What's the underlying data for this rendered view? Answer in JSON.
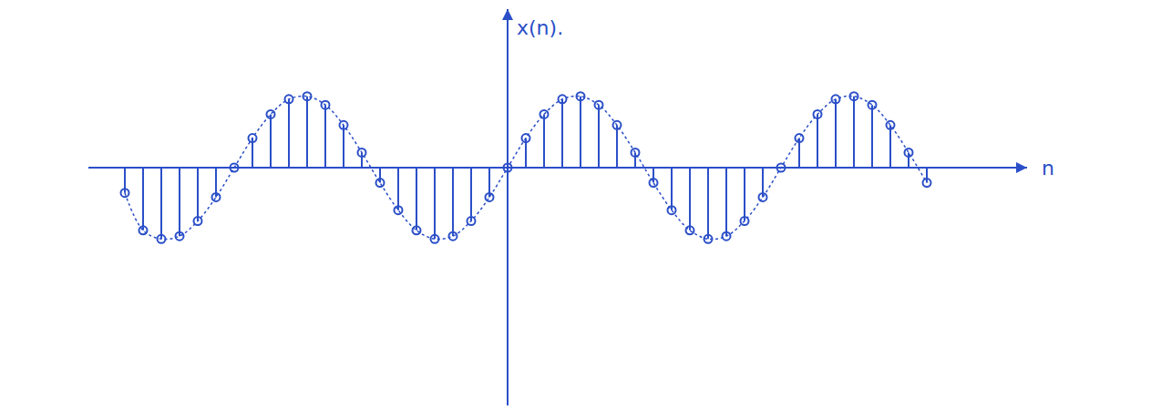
{
  "chart_data": {
    "type": "stem",
    "x_label": "n",
    "y_label": "x(n).",
    "x": [
      -21,
      -20,
      -19,
      -18,
      -17,
      -16,
      -15,
      -14,
      -13,
      -12,
      -11,
      -10,
      -9,
      -8,
      -7,
      -6,
      -5,
      -4,
      -3,
      -2,
      -1,
      0,
      1,
      2,
      3,
      4,
      5,
      6,
      7,
      8,
      9,
      10,
      11,
      12,
      13,
      14,
      15,
      16,
      17,
      18,
      19,
      20,
      21,
      22,
      23
    ],
    "values": [
      -0.35,
      -0.87,
      -0.99,
      -0.95,
      -0.74,
      -0.41,
      0,
      0.41,
      0.74,
      0.95,
      0.99,
      0.87,
      0.59,
      0.21,
      -0.21,
      -0.59,
      -0.87,
      -0.99,
      -0.95,
      -0.74,
      -0.41,
      0,
      0.41,
      0.74,
      0.95,
      0.99,
      0.87,
      0.59,
      0.21,
      -0.21,
      -0.59,
      -0.87,
      -0.99,
      -0.95,
      -0.74,
      -0.41,
      0,
      0.41,
      0.74,
      0.95,
      0.99,
      0.87,
      0.59,
      0.21,
      -0.21
    ],
    "xlim": [
      -23,
      28.5
    ],
    "ylim": [
      -3.3,
      2.2
    ],
    "color": "#2b4fc8",
    "marker": "circle-open",
    "line_style": "dashed",
    "grid": false,
    "tick_labels": false
  }
}
